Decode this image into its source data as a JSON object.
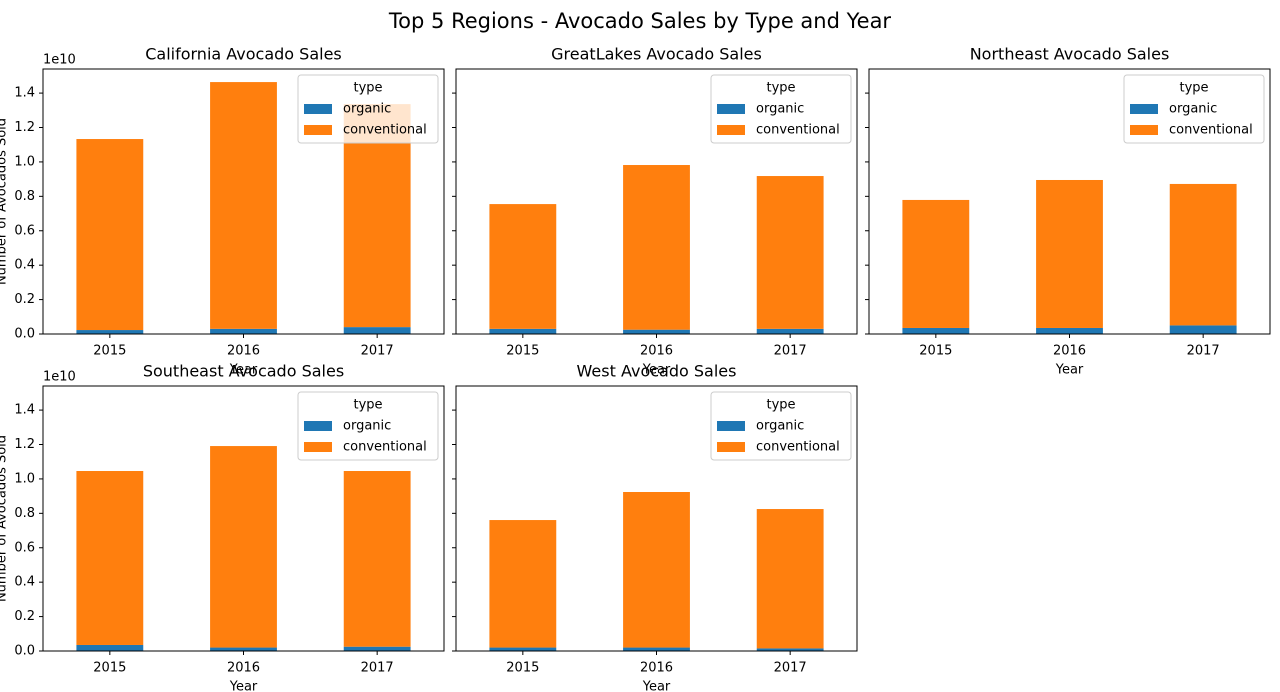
{
  "title": "Top 5 Regions - Avocado Sales by Type and Year",
  "chart_data": [
    {
      "type": "bar",
      "stacked": true,
      "title": "California Avocado Sales",
      "x_label": "Year",
      "y_label": "Number of Avocados Sold",
      "y_offset_label": "1e10",
      "categories": [
        "2015",
        "2016",
        "2017"
      ],
      "series": [
        {
          "name": "organic",
          "color": "#1f77b4",
          "values": [
            230000000,
            300000000,
            400000000
          ]
        },
        {
          "name": "conventional",
          "color": "#ff7f0e",
          "values": [
            11100000000,
            14340000000,
            12960000000
          ]
        }
      ],
      "ylim": [
        0,
        15400000000
      ],
      "yticks": [
        {
          "value": 0,
          "label": "0.0"
        },
        {
          "value": 2000000000,
          "label": "0.2"
        },
        {
          "value": 4000000000,
          "label": "0.4"
        },
        {
          "value": 6000000000,
          "label": "0.6"
        },
        {
          "value": 8000000000,
          "label": "0.8"
        },
        {
          "value": 10000000000,
          "label": "1.0"
        },
        {
          "value": 12000000000,
          "label": "1.2"
        },
        {
          "value": 14000000000,
          "label": "1.4"
        }
      ],
      "legend_title": "type",
      "legend_loc": "upper right"
    },
    {
      "type": "bar",
      "stacked": true,
      "title": "GreatLakes Avocado Sales",
      "x_label": "Year",
      "categories": [
        "2015",
        "2016",
        "2017"
      ],
      "series": [
        {
          "name": "organic",
          "color": "#1f77b4",
          "values": [
            300000000,
            250000000,
            300000000
          ]
        },
        {
          "name": "conventional",
          "color": "#ff7f0e",
          "values": [
            7250000000,
            9570000000,
            8880000000
          ]
        }
      ],
      "ylim": [
        0,
        15400000000
      ],
      "yticks": [
        0,
        2000000000,
        4000000000,
        6000000000,
        8000000000,
        10000000000,
        12000000000,
        14000000000
      ],
      "legend_title": "type",
      "legend_loc": "upper right"
    },
    {
      "type": "bar",
      "stacked": true,
      "title": "Northeast Avocado Sales",
      "x_label": "Year",
      "categories": [
        "2015",
        "2016",
        "2017"
      ],
      "series": [
        {
          "name": "organic",
          "color": "#1f77b4",
          "values": [
            350000000,
            350000000,
            500000000
          ]
        },
        {
          "name": "conventional",
          "color": "#ff7f0e",
          "values": [
            7440000000,
            8600000000,
            8220000000
          ]
        }
      ],
      "ylim": [
        0,
        15400000000
      ],
      "yticks": [
        0,
        2000000000,
        4000000000,
        6000000000,
        8000000000,
        10000000000,
        12000000000,
        14000000000
      ],
      "legend_title": "type",
      "legend_loc": "upper right"
    },
    {
      "type": "bar",
      "stacked": true,
      "title": "Southeast Avocado Sales",
      "x_label": "Year",
      "y_label": "Number of Avocados Sold",
      "y_offset_label": "1e10",
      "categories": [
        "2015",
        "2016",
        "2017"
      ],
      "series": [
        {
          "name": "organic",
          "color": "#1f77b4",
          "values": [
            350000000,
            200000000,
            250000000
          ]
        },
        {
          "name": "conventional",
          "color": "#ff7f0e",
          "values": [
            10110000000,
            11710000000,
            10210000000
          ]
        }
      ],
      "ylim": [
        0,
        15400000000
      ],
      "yticks": [
        {
          "value": 0,
          "label": "0.0"
        },
        {
          "value": 2000000000,
          "label": "0.2"
        },
        {
          "value": 4000000000,
          "label": "0.4"
        },
        {
          "value": 6000000000,
          "label": "0.6"
        },
        {
          "value": 8000000000,
          "label": "0.8"
        },
        {
          "value": 10000000000,
          "label": "1.0"
        },
        {
          "value": 12000000000,
          "label": "1.2"
        },
        {
          "value": 14000000000,
          "label": "1.4"
        }
      ],
      "legend_title": "type",
      "legend_loc": "upper right"
    },
    {
      "type": "bar",
      "stacked": true,
      "title": "West Avocado Sales",
      "x_label": "Year",
      "categories": [
        "2015",
        "2016",
        "2017"
      ],
      "series": [
        {
          "name": "organic",
          "color": "#1f77b4",
          "values": [
            200000000,
            200000000,
            150000000
          ]
        },
        {
          "name": "conventional",
          "color": "#ff7f0e",
          "values": [
            7410000000,
            9040000000,
            8100000000
          ]
        }
      ],
      "ylim": [
        0,
        15400000000
      ],
      "yticks": [
        0,
        2000000000,
        4000000000,
        6000000000,
        8000000000,
        10000000000,
        12000000000,
        14000000000
      ],
      "legend_title": "type",
      "legend_loc": "upper right"
    }
  ]
}
